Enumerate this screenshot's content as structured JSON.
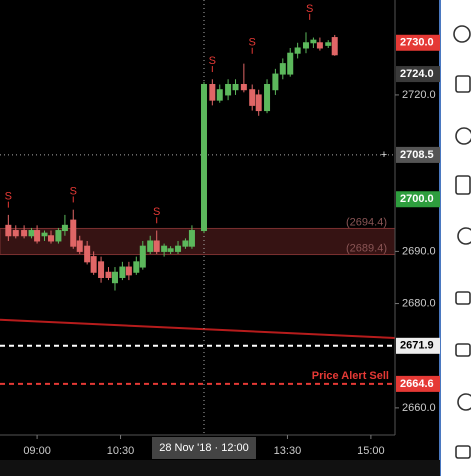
{
  "chart_data": {
    "type": "candlestick",
    "x": [
      509,
      517,
      526,
      534,
      540,
      548,
      555,
      563,
      570,
      579,
      586,
      594,
      601,
      609,
      617,
      624,
      632,
      639,
      647,
      654,
      662,
      669,
      677,
      684,
      692,
      700,
      707,
      720,
      729,
      737,
      746,
      754,
      763,
      772,
      779,
      788,
      797,
      805,
      813,
      821,
      830,
      838,
      845,
      854,
      861
    ],
    "open": [
      2695,
      2694,
      2694,
      2693,
      2694,
      2693,
      2693,
      2692,
      2694,
      2696,
      2692,
      2691,
      2689,
      2688,
      2686,
      2684,
      2685,
      2687,
      2686,
      2687,
      2690,
      2692,
      2690,
      2690,
      2690,
      2691,
      2691,
      2694,
      2722,
      2719,
      2720,
      2721,
      2722,
      2721,
      2720,
      2717,
      2721,
      2724,
      2724,
      2728,
      2729,
      2730,
      2730,
      2729.5,
      2731
    ],
    "high": [
      2697,
      2695,
      2695,
      2694.5,
      2695,
      2694,
      2694,
      2694.5,
      2697,
      2698,
      2693,
      2692,
      2690,
      2689,
      2687,
      2687,
      2688,
      2688,
      2689,
      2692,
      2693,
      2694,
      2691.5,
      2691,
      2692,
      2692.5,
      2695,
      2722.5,
      2723,
      2722,
      2723,
      2723,
      2726,
      2722,
      2721,
      2723,
      2725,
      2727,
      2729,
      2730,
      2732,
      2731,
      2731,
      2730.5,
      2731.5
    ],
    "low": [
      2692,
      2692.5,
      2692.5,
      2692.5,
      2691.5,
      2692,
      2691.5,
      2691.5,
      2693,
      2690.5,
      2689.5,
      2687.5,
      2685.5,
      2684,
      2684.5,
      2682.5,
      2684.5,
      2684.5,
      2685.5,
      2686.5,
      2689.5,
      2689.5,
      2689,
      2689.5,
      2689.5,
      2690.5,
      2690.5,
      2693.5,
      2718,
      2718.5,
      2719,
      2720,
      2720.5,
      2717,
      2716,
      2716.5,
      2720,
      2723,
      2723.5,
      2727,
      2728,
      2729,
      2728.5,
      2729,
      2727.5
    ],
    "close": [
      2693,
      2693,
      2693,
      2694,
      2692,
      2693.5,
      2692,
      2694,
      2695,
      2691,
      2690,
      2688,
      2686,
      2685,
      2685,
      2686,
      2687,
      2685.5,
      2688,
      2691,
      2692,
      2690,
      2691,
      2690.5,
      2691,
      2692,
      2694,
      2722,
      2719,
      2721,
      2722,
      2722,
      2721,
      2718,
      2717,
      2722,
      2724,
      2726,
      2728,
      2729,
      2730,
      2730.5,
      2729,
      2730,
      2727.7
    ],
    "up_color": "#5cb85c",
    "down_color": "#e06666",
    "xlim": [
      500,
      926
    ],
    "ylim": [
      2654.8,
      2738.2
    ],
    "yticks": [
      {
        "value": 2660,
        "label": "2660.0"
      },
      {
        "value": 2680,
        "label": "2680.0"
      },
      {
        "value": 2690,
        "label": "2690.0"
      },
      {
        "value": 2720,
        "label": "2720.0"
      }
    ],
    "xticks": [
      {
        "value": 540,
        "label": "09:00"
      },
      {
        "value": 630,
        "label": "10:30"
      },
      {
        "value": 810,
        "label": "13:30"
      },
      {
        "value": 900,
        "label": "15:00"
      }
    ],
    "crosshair": {
      "x": 720,
      "x_label": "28 Nov '18 · 12:00",
      "y": 2708.5,
      "y_label": "2708.5"
    },
    "zone": {
      "top": 2694.4,
      "bottom": 2689.4,
      "top_label": "(2694.4)",
      "bottom_label": "(2689.4)",
      "color": "#5a1f1f"
    },
    "trend_line": {
      "x": [
        500,
        926
      ],
      "y": [
        2676.9,
        2673.4
      ],
      "color": "#b71c1c"
    },
    "hlines": [
      {
        "value": 2671.9,
        "color": "#ffffff"
      },
      {
        "value": 2664.6,
        "color": "#e53935",
        "label": "Price Alert Sell"
      }
    ],
    "price_labels": [
      {
        "value": 2730,
        "label": "2730.0",
        "color": "#e53935"
      },
      {
        "value": 2724,
        "label": "2724.0",
        "color": "#3a3a3a"
      },
      {
        "value": 2700,
        "label": "2700.0",
        "color": "#2e9e3e"
      },
      {
        "value": 2671.9,
        "label": "2671.9",
        "color": "#eeeeee"
      },
      {
        "value": 2664.6,
        "label": "2664.6",
        "color": "#e53935"
      }
    ],
    "signals": [
      {
        "x": 509,
        "y": 2700.5,
        "label": "S"
      },
      {
        "x": 579,
        "y": 2701.5,
        "label": "S"
      },
      {
        "x": 669,
        "y": 2697.5,
        "label": "S"
      },
      {
        "x": 729,
        "y": 2726.5,
        "label": "S"
      },
      {
        "x": 772,
        "y": 2730,
        "label": "S"
      },
      {
        "x": 834,
        "y": 2736.5,
        "label": "S"
      }
    ]
  }
}
